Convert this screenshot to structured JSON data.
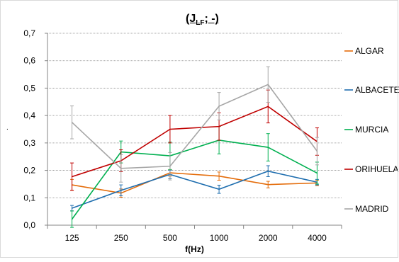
{
  "chart_data": {
    "type": "line",
    "title_main": "(J",
    "title_sub": "LF",
    "title_tail": "; -)",
    "xlabel": "f(Hz)",
    "ylabel": "",
    "categories": [
      "125",
      "250",
      "500",
      "1000",
      "2000",
      "4000"
    ],
    "ylim": [
      0,
      0.7
    ],
    "yticks": [
      "0,0",
      "0,1",
      "0,2",
      "0,3",
      "0,4",
      "0,5",
      "0,6",
      "0,7"
    ],
    "grid": true,
    "legend_position": "right",
    "series": [
      {
        "name": "ALGAR",
        "color": "#e46c0a",
        "values": [
          0.147,
          0.117,
          0.191,
          0.179,
          0.148,
          0.154
        ],
        "errors": [
          0.02,
          0.015,
          0.012,
          0.015,
          0.012,
          0.01
        ]
      },
      {
        "name": "ALBACETE",
        "color": "#1f6eaf",
        "values": [
          0.062,
          0.127,
          0.185,
          0.131,
          0.197,
          0.157
        ],
        "errors": [
          0.01,
          0.02,
          0.015,
          0.015,
          0.02,
          0.01
        ]
      },
      {
        "name": "MURCIA",
        "color": "#00b050",
        "values": [
          0.022,
          0.267,
          0.253,
          0.31,
          0.284,
          0.19
        ],
        "errors": [
          0.03,
          0.04,
          0.05,
          0.05,
          0.05,
          0.04
        ]
      },
      {
        "name": "ORIHUELA",
        "color": "#c00000",
        "values": [
          0.177,
          0.235,
          0.35,
          0.36,
          0.433,
          0.305
        ],
        "errors": [
          0.05,
          0.04,
          0.05,
          0.05,
          0.06,
          0.05
        ]
      },
      {
        "name": "MADRID",
        "color": "#a6a6a6",
        "values": [
          0.375,
          0.207,
          0.215,
          0.434,
          0.513,
          0.27
        ],
        "errors": [
          0.06,
          0.05,
          0.05,
          0.05,
          0.065,
          0.05
        ]
      }
    ],
    "y_side_mark": "."
  }
}
